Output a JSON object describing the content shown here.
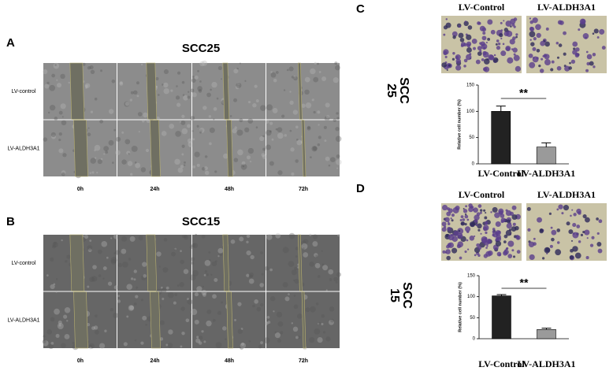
{
  "panels": {
    "A": {
      "label": "A",
      "title": "SCC25",
      "rows": [
        "LV-control",
        "LV-ALDH3A1"
      ],
      "times": [
        "0h",
        "24h",
        "48h",
        "72h"
      ]
    },
    "B": {
      "label": "B",
      "title": "SCC15",
      "rows": [
        "LV-control",
        "LV-ALDH3A1"
      ],
      "times": [
        "0h",
        "24h",
        "48h",
        "72h"
      ]
    },
    "C": {
      "label": "C",
      "columns": [
        "LV-Control",
        "LV-ALDH3A1"
      ],
      "side_label": [
        "SCC",
        "25"
      ]
    },
    "D": {
      "label": "D",
      "columns": [
        "LV-Control",
        "LV-ALDH3A1"
      ],
      "side_label": [
        "SCC",
        "15"
      ]
    }
  },
  "chart_data": [
    {
      "type": "bar",
      "categories": [
        "LV-Control",
        "LV-ALDH3A1"
      ],
      "values": [
        100,
        32
      ],
      "errors": [
        10,
        8
      ],
      "colors": [
        "#222222",
        "#9a9a9a"
      ],
      "ylabel": "Relative cell number (%)",
      "ylim": [
        0,
        150
      ],
      "yticks": [
        0,
        50,
        100,
        150
      ],
      "annotation": "**"
    },
    {
      "type": "bar",
      "categories": [
        "LV-Control",
        "LV-ALDH3A1"
      ],
      "values": [
        102,
        22
      ],
      "errors": [
        3,
        3
      ],
      "colors": [
        "#222222",
        "#9a9a9a"
      ],
      "ylabel": "Relative cell number (%)",
      "ylim": [
        0,
        150
      ],
      "yticks": [
        0,
        50,
        100,
        150
      ],
      "annotation": "**"
    }
  ]
}
